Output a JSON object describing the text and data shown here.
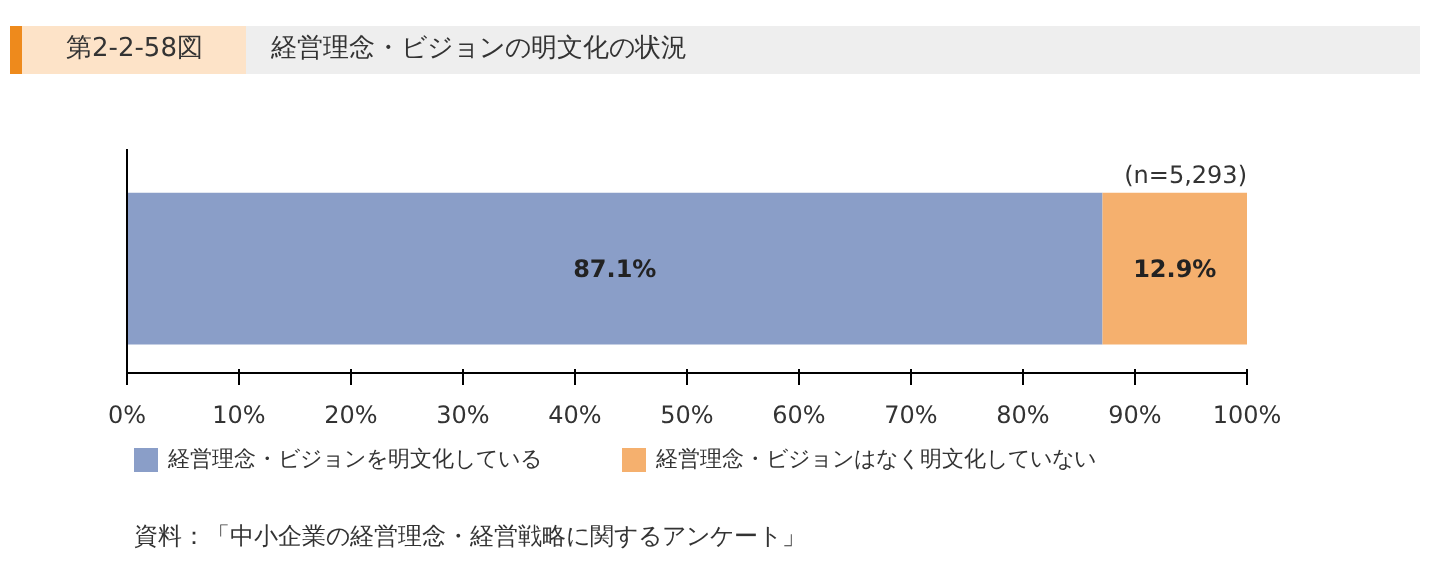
{
  "chart_data": {
    "type": "bar",
    "orientation": "horizontal",
    "stacked": true,
    "subtitle": "第2-2-58図",
    "title": "経営理念・ビジョンの明文化の状況",
    "categories": [
      null
    ],
    "series": [
      {
        "name": "経営理念・ビジョンを明文化している",
        "color": "#8a9ec8",
        "values": [
          87.1
        ],
        "value_labels": [
          "87.1%"
        ]
      },
      {
        "name": "経営理念・ビジョンはなく明文化していない",
        "color": "#f5b06e",
        "values": [
          12.9
        ],
        "value_labels": [
          "12.9%"
        ]
      }
    ],
    "xlim": [
      0,
      100
    ],
    "xticks": [
      {
        "value": 0,
        "label": "0%"
      },
      {
        "value": 10,
        "label": "10%"
      },
      {
        "value": 20,
        "label": "20%"
      },
      {
        "value": 30,
        "label": "30%"
      },
      {
        "value": 40,
        "label": "40%"
      },
      {
        "value": 50,
        "label": "50%"
      },
      {
        "value": 60,
        "label": "60%"
      },
      {
        "value": 70,
        "label": "70%"
      },
      {
        "value": 80,
        "label": "80%"
      },
      {
        "value": 90,
        "label": "90%"
      },
      {
        "value": 100,
        "label": "100%"
      }
    ],
    "grid": false,
    "legend": "bottom",
    "tick_labels": "x",
    "annotations": [
      "(n=5,293)",
      "資料：「中小企業の経営理念・経営戦略に関するアンケート」"
    ]
  }
}
